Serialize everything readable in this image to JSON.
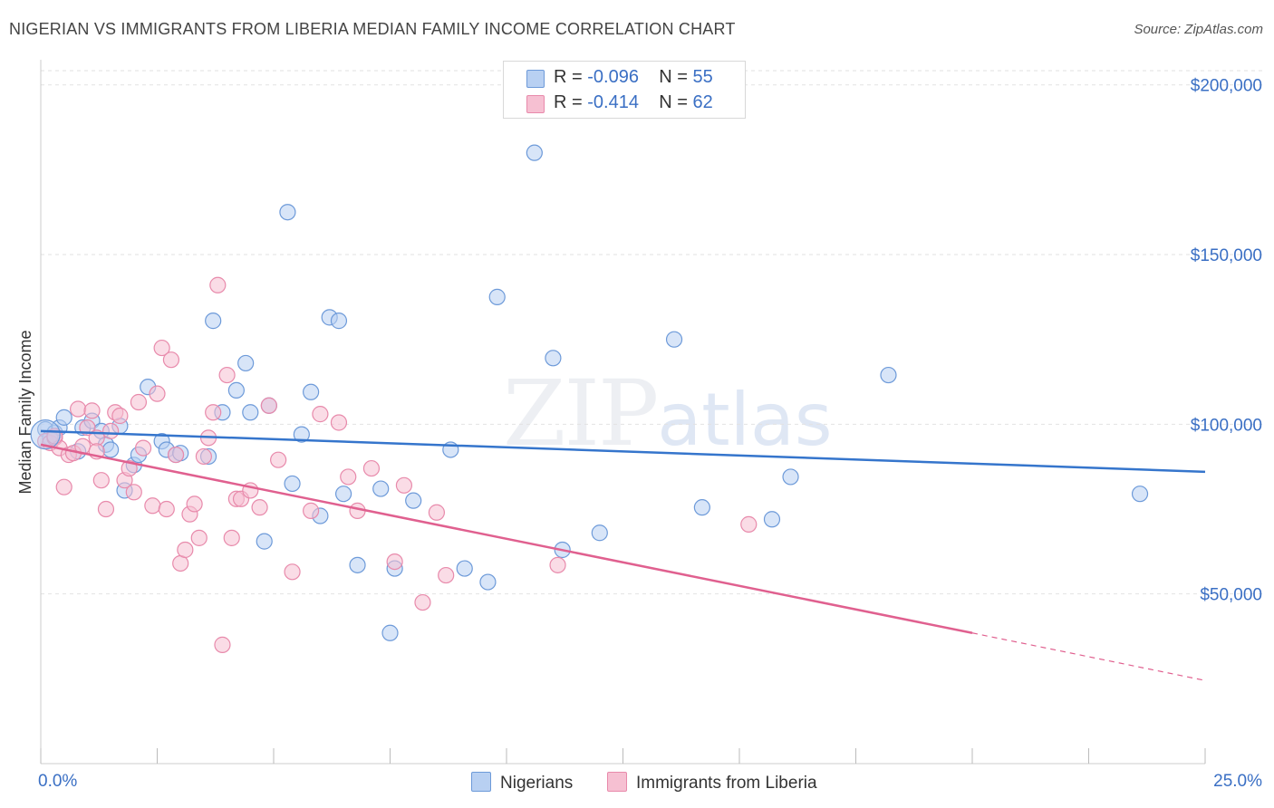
{
  "title": "NIGERIAN VS IMMIGRANTS FROM LIBERIA MEDIAN FAMILY INCOME CORRELATION CHART",
  "source": "Source: ZipAtlas.com",
  "watermark": {
    "zip": "ZIP",
    "atlas": "atlas"
  },
  "legend": {
    "rows": [
      {
        "r_label": "R = ",
        "r_value": "-0.096",
        "n_label": "N = ",
        "n_value": "55"
      },
      {
        "r_label": "R = ",
        "r_value": " -0.414",
        "n_label": "N = ",
        "n_value": "62"
      }
    ]
  },
  "colors": {
    "blue_fill": "#b8d0f2",
    "blue_stroke": "#6d9ad9",
    "blue_line": "#3575cc",
    "pink_fill": "#f6c0d2",
    "pink_stroke": "#e88aab",
    "pink_line": "#e0608f",
    "axis_label": "#3a6fc4",
    "grid": "#e2e2e2"
  },
  "chart_data": {
    "type": "scatter",
    "ylabel": "Median Family Income",
    "x_tick_labels": [
      "0.0%",
      "25.0%"
    ],
    "y_tick_labels": [
      "$50,000",
      "$100,000",
      "$150,000",
      "$200,000"
    ],
    "xlim": [
      0,
      25
    ],
    "ylim": [
      0,
      205000
    ],
    "grid": "horizontal dashed",
    "legend_position": "top-center",
    "series": [
      {
        "name": "Nigerians",
        "r": -0.096,
        "n": 55,
        "trend": {
          "x": [
            0,
            25
          ],
          "y": [
            98000,
            86000
          ]
        },
        "points": [
          [
            0.1,
            98500
          ],
          [
            0.3,
            97500
          ],
          [
            0.4,
            99000
          ],
          [
            0.5,
            102000
          ],
          [
            0.8,
            92000
          ],
          [
            0.9,
            99000
          ],
          [
            1.1,
            101000
          ],
          [
            1.3,
            98000
          ],
          [
            1.4,
            94000
          ],
          [
            1.5,
            92500
          ],
          [
            1.7,
            99500
          ],
          [
            1.8,
            80500
          ],
          [
            2.0,
            88000
          ],
          [
            2.1,
            91000
          ],
          [
            2.3,
            111000
          ],
          [
            2.6,
            95000
          ],
          [
            2.7,
            92500
          ],
          [
            2.9,
            91000
          ],
          [
            3.0,
            91500
          ],
          [
            3.6,
            90500
          ],
          [
            3.7,
            130500
          ],
          [
            3.9,
            103500
          ],
          [
            4.2,
            110000
          ],
          [
            4.4,
            118000
          ],
          [
            4.5,
            103500
          ],
          [
            4.8,
            65500
          ],
          [
            4.9,
            105500
          ],
          [
            5.3,
            162500
          ],
          [
            5.4,
            82500
          ],
          [
            5.6,
            97000
          ],
          [
            5.8,
            109500
          ],
          [
            6.0,
            73000
          ],
          [
            6.2,
            131500
          ],
          [
            6.4,
            130500
          ],
          [
            6.5,
            79500
          ],
          [
            6.8,
            58500
          ],
          [
            7.3,
            81000
          ],
          [
            7.5,
            38500
          ],
          [
            7.6,
            57500
          ],
          [
            8.0,
            77500
          ],
          [
            8.8,
            92500
          ],
          [
            9.1,
            57500
          ],
          [
            9.6,
            53500
          ],
          [
            9.8,
            137500
          ],
          [
            10.6,
            180000
          ],
          [
            11.0,
            119500
          ],
          [
            11.2,
            63000
          ],
          [
            12.0,
            68000
          ],
          [
            13.6,
            125000
          ],
          [
            14.2,
            75500
          ],
          [
            15.7,
            72000
          ],
          [
            16.1,
            84500
          ],
          [
            18.2,
            114500
          ],
          [
            23.6,
            79500
          ],
          [
            0.2,
            96000
          ]
        ]
      },
      {
        "name": "Immigrants from Liberia",
        "r": -0.414,
        "n": 62,
        "trend": {
          "x": [
            0,
            20,
            25
          ],
          "y": [
            94000,
            38500,
            24500
          ],
          "dashed_from_x": 20
        },
        "points": [
          [
            0.1,
            95000
          ],
          [
            0.2,
            94500
          ],
          [
            0.3,
            96000
          ],
          [
            0.4,
            93000
          ],
          [
            0.5,
            81500
          ],
          [
            0.6,
            91000
          ],
          [
            0.7,
            91500
          ],
          [
            0.8,
            104500
          ],
          [
            0.9,
            93500
          ],
          [
            1.0,
            99000
          ],
          [
            1.1,
            104000
          ],
          [
            1.2,
            96000
          ],
          [
            1.3,
            83500
          ],
          [
            1.4,
            75000
          ],
          [
            1.5,
            98000
          ],
          [
            1.6,
            103500
          ],
          [
            1.7,
            102500
          ],
          [
            1.8,
            83500
          ],
          [
            1.9,
            87000
          ],
          [
            2.0,
            80000
          ],
          [
            2.1,
            106500
          ],
          [
            2.2,
            93000
          ],
          [
            2.4,
            76000
          ],
          [
            2.5,
            109000
          ],
          [
            2.6,
            122500
          ],
          [
            2.7,
            75000
          ],
          [
            2.8,
            119000
          ],
          [
            2.9,
            91000
          ],
          [
            3.0,
            59000
          ],
          [
            3.1,
            63000
          ],
          [
            3.2,
            73500
          ],
          [
            3.3,
            76500
          ],
          [
            3.4,
            66500
          ],
          [
            3.5,
            90500
          ],
          [
            3.6,
            96000
          ],
          [
            3.7,
            103500
          ],
          [
            3.8,
            141000
          ],
          [
            3.9,
            35000
          ],
          [
            4.0,
            114500
          ],
          [
            4.1,
            66500
          ],
          [
            4.2,
            78000
          ],
          [
            4.3,
            78000
          ],
          [
            4.5,
            80500
          ],
          [
            4.7,
            75500
          ],
          [
            4.9,
            105500
          ],
          [
            5.1,
            89500
          ],
          [
            5.4,
            56500
          ],
          [
            5.8,
            74500
          ],
          [
            6.0,
            103000
          ],
          [
            6.4,
            100500
          ],
          [
            6.6,
            84500
          ],
          [
            6.8,
            74500
          ],
          [
            7.1,
            87000
          ],
          [
            7.6,
            59500
          ],
          [
            7.8,
            82000
          ],
          [
            8.2,
            47500
          ],
          [
            8.5,
            74000
          ],
          [
            8.7,
            55500
          ],
          [
            11.1,
            58500
          ],
          [
            15.2,
            70500
          ],
          [
            0.3,
            96500
          ],
          [
            1.2,
            92000
          ]
        ]
      }
    ]
  }
}
